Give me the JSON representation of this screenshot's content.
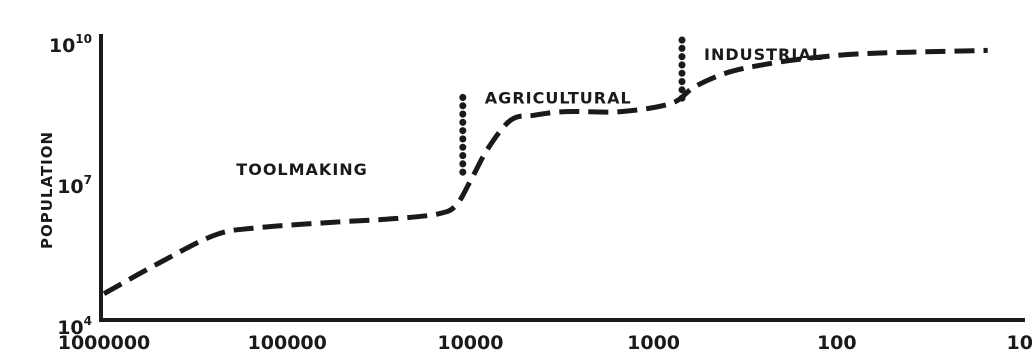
{
  "chart_data": {
    "type": "line",
    "title": "",
    "xlabel": "",
    "ylabel": "POPULATION",
    "x_scale": "log-reversed",
    "y_scale": "log",
    "xlim": [
      1000000,
      10
    ],
    "ylim": [
      10000,
      10000000000
    ],
    "x_ticks": [
      "1000000",
      "100000",
      "10000",
      "1000",
      "100",
      "10"
    ],
    "x_tick_values": [
      1000000,
      100000,
      10000,
      1000,
      100,
      10
    ],
    "y_ticks": [
      {
        "base": "10",
        "exp": "4",
        "value": 10000
      },
      {
        "base": "10",
        "exp": "7",
        "value": 10000000
      },
      {
        "base": "10",
        "exp": "10",
        "value": 10000000000
      }
    ],
    "line_style": "dashed",
    "color": "#1a1a1a",
    "grid": false,
    "series": [
      {
        "x": [
          1000000,
          500000,
          250000,
          150000,
          60000,
          25000,
          15000,
          12000,
          10000,
          8000,
          6000,
          4500,
          3000,
          1500,
          800,
          600,
          400,
          250,
          150,
          80,
          40,
          15
        ],
        "y": [
          40000,
          180000,
          700000,
          1000000,
          1300000,
          1600000,
          2000000,
          3000000,
          10000000,
          50000000,
          200000000,
          250000000,
          300000000,
          300000000,
          450000000,
          1000000000,
          2000000000,
          3000000000,
          4000000000,
          5000000000,
          5500000000,
          6000000000
        ]
      }
    ],
    "annotations": [
      {
        "text": "TOOLMAKING",
        "x": 250000,
        "y": 18000000
      },
      {
        "text": "AGRICULTURAL",
        "x": 11000,
        "y": 600000000,
        "divider_x": 11000,
        "divider_ylim": [
          15000000,
          600000000
        ]
      },
      {
        "text": "INDUSTRIAL",
        "x": 700,
        "y": 5000000000,
        "divider_x": 700,
        "divider_ylim": [
          500000000,
          10000000000
        ]
      }
    ]
  }
}
